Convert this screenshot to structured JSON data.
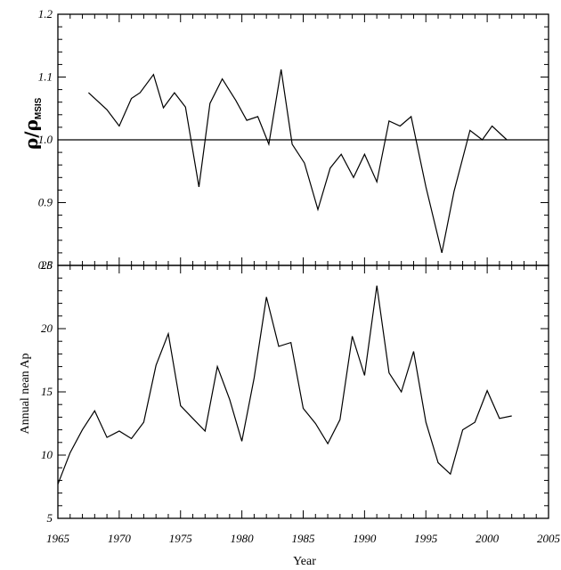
{
  "chart_data": [
    {
      "type": "line",
      "panel": "top",
      "ylabel_main": "ρ/ρ",
      "ylabel_sub": "MSIS",
      "xlim": [
        1965,
        2005
      ],
      "ylim": [
        0.8,
        1.2
      ],
      "yticks": [
        "0.8",
        "0.9",
        "1.0",
        "1.1",
        "1.2"
      ],
      "reference_line": 1.0,
      "series": [
        {
          "x": [
            1967.5,
            1969,
            1970,
            1971,
            1971.7,
            1972.8,
            1973.6,
            1974.5,
            1975.4,
            1976.5,
            1977.4,
            1978.4,
            1979.5,
            1980.4,
            1981.3,
            1982.2,
            1983.2,
            1984.1,
            1985.1,
            1986.2,
            1987.2,
            1988.1,
            1989.1,
            1990.0,
            1991.0,
            1992.0,
            1992.9,
            1993.8,
            1995.0,
            1996.3,
            1997.3,
            1998.6,
            1999.6,
            2000.4,
            2001.6
          ],
          "values": [
            1.075,
            1.048,
            1.022,
            1.066,
            1.075,
            1.104,
            1.051,
            1.075,
            1.052,
            0.925,
            1.058,
            1.097,
            1.063,
            1.031,
            1.037,
            0.993,
            1.112,
            0.993,
            0.963,
            0.889,
            0.955,
            0.977,
            0.94,
            0.977,
            0.933,
            1.03,
            1.022,
            1.037,
            0.925,
            0.82,
            0.918,
            1.015,
            1.0,
            1.022,
            1.0
          ]
        }
      ]
    },
    {
      "type": "line",
      "panel": "bottom",
      "xlabel": "Year",
      "ylabel": "Annual nean Ap",
      "xlim": [
        1965,
        2005
      ],
      "ylim": [
        5,
        25
      ],
      "yticks": [
        "5",
        "10",
        "15",
        "20",
        "25"
      ],
      "xticks": [
        "1965",
        "1970",
        "1975",
        "1980",
        "1985",
        "1990",
        "1995",
        "2000",
        "2005"
      ],
      "series": [
        {
          "x": [
            1965,
            1966,
            1967,
            1968,
            1969,
            1970,
            1971,
            1972,
            1973,
            1974,
            1975,
            1976,
            1977,
            1978,
            1979,
            1980,
            1981,
            1982,
            1983,
            1984,
            1985,
            1986,
            1987,
            1988,
            1989,
            1990,
            1991,
            1992,
            1993,
            1994,
            1995,
            1996,
            1997,
            1998,
            1999,
            2000,
            2001,
            2002
          ],
          "values": [
            7.7,
            10.2,
            12.0,
            13.5,
            11.4,
            11.9,
            11.3,
            12.6,
            17.1,
            19.6,
            13.9,
            12.9,
            11.9,
            17.0,
            14.4,
            11.1,
            16.1,
            22.5,
            18.6,
            18.9,
            13.7,
            12.5,
            10.9,
            12.8,
            19.4,
            16.3,
            23.4,
            16.5,
            15.0,
            18.2,
            12.6,
            9.4,
            8.5,
            12.0,
            12.6,
            15.1,
            12.9,
            13.1
          ]
        }
      ]
    }
  ]
}
